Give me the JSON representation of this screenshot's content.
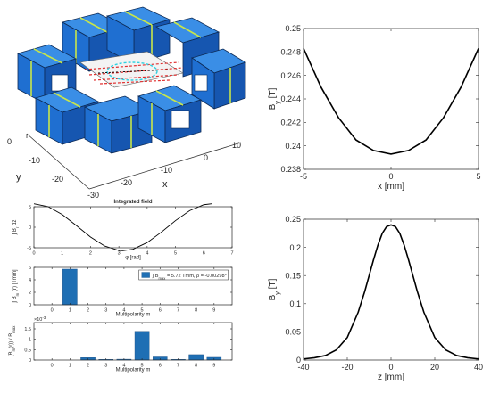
{
  "figure": {
    "magnet_3d": {
      "x_axis_label": "x",
      "y_axis_label": "y",
      "x_ticks": [
        "-30",
        "-20",
        "-10",
        "0",
        "10"
      ],
      "y_ticks": [
        "0",
        "-10",
        "-20"
      ],
      "colors": {
        "block": "#1f6fd1",
        "block_dark": "#123c7a",
        "stripe": "#c8e64a",
        "field_lines": "#e03030",
        "cyan": "#30d0e0"
      }
    }
  },
  "chart_data": [
    {
      "id": "by_vs_x",
      "type": "line",
      "xlabel": "x [mm]",
      "ylabel": "B",
      "ylabel_sub": "y",
      "ylabel_unit": " [T]",
      "xlim": [
        -5,
        5
      ],
      "ylim": [
        0.238,
        0.25
      ],
      "xticks": [
        -5,
        0,
        5
      ],
      "yticks": [
        0.238,
        0.24,
        0.242,
        0.244,
        0.246,
        0.248,
        0.25
      ],
      "ytick_labels": [
        "0.238",
        "0.24",
        "0.242",
        "0.244",
        "0.246",
        "0.248",
        "0.25"
      ],
      "x": [
        -5,
        -4,
        -3,
        -2,
        -1,
        0,
        1,
        2,
        3,
        4,
        5
      ],
      "y": [
        0.2483,
        0.245,
        0.2424,
        0.2405,
        0.2396,
        0.2393,
        0.2396,
        0.2405,
        0.2424,
        0.245,
        0.2483
      ],
      "color": "#000000"
    },
    {
      "id": "by_vs_z",
      "type": "line",
      "xlabel": "z [mm]",
      "ylabel": "B",
      "ylabel_sub": "y",
      "ylabel_unit": " [T]",
      "xlim": [
        -40,
        40
      ],
      "ylim": [
        0,
        0.25
      ],
      "xticks": [
        -40,
        -20,
        0,
        20,
        40
      ],
      "yticks": [
        0,
        0.05,
        0.1,
        0.15,
        0.2,
        0.25
      ],
      "ytick_labels": [
        "0",
        "0.05",
        "0.1",
        "0.15",
        "0.2",
        "0.25"
      ],
      "x": [
        -40,
        -35,
        -30,
        -25,
        -20,
        -15,
        -12,
        -10,
        -8,
        -6,
        -4,
        -2,
        0,
        2,
        4,
        6,
        8,
        10,
        12,
        15,
        20,
        25,
        30,
        35,
        40
      ],
      "y": [
        0.002,
        0.004,
        0.008,
        0.018,
        0.04,
        0.085,
        0.122,
        0.15,
        0.178,
        0.204,
        0.225,
        0.237,
        0.24,
        0.237,
        0.225,
        0.204,
        0.178,
        0.15,
        0.122,
        0.085,
        0.04,
        0.018,
        0.008,
        0.004,
        0.002
      ],
      "color": "#000000"
    },
    {
      "id": "integrated_field",
      "type": "line",
      "title": "Integrated field",
      "xlabel": "φ [rad]",
      "ylabel": "∫ B",
      "ylabel_sub": "r",
      "ylabel_unit": " dz",
      "xlim": [
        0,
        7
      ],
      "ylim": [
        -5,
        5
      ],
      "xticks": [
        0,
        1,
        2,
        3,
        4,
        5,
        6,
        7
      ],
      "yticks": [
        -5,
        0,
        5
      ],
      "ytick_labels": [
        "-5",
        "0",
        "5"
      ],
      "x": [
        0,
        0.5,
        1,
        1.5,
        2,
        2.5,
        3,
        3.14,
        3.5,
        4,
        4.5,
        5,
        5.5,
        6,
        6.28
      ],
      "y": [
        5.72,
        5.02,
        3.09,
        0.4,
        -2.38,
        -4.58,
        -5.66,
        -5.72,
        -5.36,
        -3.74,
        -1.21,
        1.62,
        4.05,
        5.49,
        5.72
      ],
      "color": "#000000"
    },
    {
      "id": "multipoles_abs",
      "type": "bar",
      "xlabel": "Multipolarity m",
      "ylabel": "∫ B",
      "ylabel_sub": "m",
      "ylabel_unit": " (r) [Tmm]",
      "xlim": [
        -1,
        10
      ],
      "ylim": [
        0,
        6
      ],
      "xticks": [
        0,
        1,
        2,
        3,
        4,
        5,
        6,
        7,
        8,
        9
      ],
      "yticks": [
        0,
        2,
        4,
        6
      ],
      "ytick_labels": [
        "0",
        "2",
        "4",
        "6"
      ],
      "categories": [
        0,
        1,
        2,
        3,
        4,
        5,
        6,
        7,
        8,
        9
      ],
      "values": [
        0,
        5.72,
        0,
        0,
        0,
        0,
        0,
        0,
        0,
        0
      ],
      "color": "#1f6fb4",
      "legend": {
        "prefix": "∫ B",
        "sub": "max",
        "text": " = 5.72  Tmm,  ρ = -0.00298°"
      }
    },
    {
      "id": "multipoles_rel",
      "type": "bar",
      "xlabel": "Multipolarity m",
      "ylabel": "(B",
      "ylabel_sub": "m",
      "ylabel_unit": "(r)) / B",
      "ylabel_sub2": "max",
      "xlim": [
        -1,
        10
      ],
      "ylim": [
        0,
        0.0018
      ],
      "exponent_label": "×10",
      "exponent_power": "-3",
      "xticks": [
        0,
        1,
        2,
        3,
        4,
        5,
        6,
        7,
        8,
        9
      ],
      "yticks": [
        0,
        0.0005,
        0.001,
        0.0015
      ],
      "ytick_labels": [
        "0",
        "0.5",
        "1",
        "1.5"
      ],
      "categories": [
        0,
        1,
        2,
        3,
        4,
        5,
        6,
        7,
        8,
        9
      ],
      "values": [
        0,
        0,
        0.00012,
        3e-05,
        4e-05,
        0.00138,
        0.00015,
        3e-05,
        0.00026,
        0.00013
      ],
      "color": "#1f6fb4"
    }
  ]
}
